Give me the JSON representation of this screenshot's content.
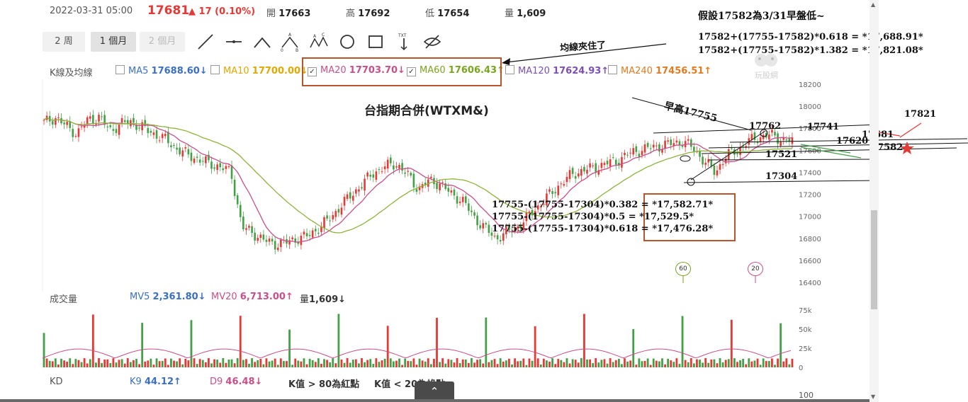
{
  "header": {
    "datetime": "2022-03-31 05:00",
    "price": "17681",
    "change": "▲ 17 (0.10%)",
    "open_label": "開",
    "open": "17663",
    "high_label": "高",
    "high": "17692",
    "low_label": "低",
    "low": "17654",
    "vol_label": "量",
    "vol": "1,609"
  },
  "periods": [
    "2 周",
    "1 個月",
    "2 個月"
  ],
  "active_period": "1 個月",
  "ma_bar": {
    "label": "K線及均線",
    "items": [
      {
        "name": "MA5",
        "value": "17688.60↓",
        "checked": false,
        "color": "#3a6fc4"
      },
      {
        "name": "MA10",
        "value": "17700.00↓",
        "checked": false,
        "color": "#e0a800"
      },
      {
        "name": "MA20",
        "value": "17703.70↓",
        "checked": true,
        "color": "#c94f8a"
      },
      {
        "name": "MA60",
        "value": "17606.43↑",
        "checked": true,
        "color": "#7aa51e"
      },
      {
        "name": "MA120",
        "value": "17624.93↑",
        "checked": false,
        "color": "#7c4fb3"
      },
      {
        "name": "MA240",
        "value": "17456.51↑",
        "checked": false,
        "color": "#e07b1f"
      }
    ]
  },
  "notes": {
    "top_right_title": "假設17582為3/31早盤低~",
    "formula1": "17582+(17755-17582)*0.618 = *17,688.91*",
    "formula2": "17582+(17755-17582)*1.382 = *17,821.08*",
    "ma_note": "均線夾住了",
    "early_high": "早高17755",
    "fib1": "17755-(17755-17304)*0.382 = *17,582.71*",
    "fib2": "17755-(17755-17304)*0.5 = *17,529.5*",
    "fib3": "17755-(17755-17304)*0.618 = *17,476.28*"
  },
  "levels": [
    "17821",
    "17762",
    "17741",
    "17681",
    "17620",
    "17582",
    "17521",
    "17304"
  ],
  "watermark": "玩股網",
  "volume_bar": {
    "label": "成交量",
    "mv5_label": "MV5",
    "mv5": "2,361.80↓",
    "mv20_label": "MV20",
    "mv20": "6,713.00↑",
    "vol_label": "量",
    "vol": "1,609↓"
  },
  "kd_bar": {
    "label": "KD",
    "k9_label": "K9",
    "k9": "44.12↑",
    "d9_label": "D9",
    "d9": "46.48↓",
    "note1": "K值 > 80為紅點",
    "note2": "K值 < 20為綠點"
  },
  "badges": [
    "60",
    "20"
  ],
  "colors": {
    "up": "#e53935",
    "down": "#43a047",
    "ma20": "#c94f8a",
    "ma60": "#8db33a",
    "highlight_box": "#b5562e"
  },
  "chart_data": {
    "type": "candlestick",
    "title": "台指期合併(WTXM&)",
    "y_ticks": [
      18200,
      18000,
      17800,
      17600,
      17400,
      17200,
      17000,
      16800,
      16600,
      16400
    ],
    "ylim": [
      16400,
      18200
    ],
    "closes": [
      17850,
      17900,
      17820,
      17750,
      17880,
      17900,
      17780,
      17840,
      17860,
      17800,
      17750,
      17700,
      17620,
      17560,
      17520,
      17480,
      17450,
      17400,
      16900,
      16850,
      16780,
      16750,
      16760,
      16800,
      16820,
      16900,
      16980,
      17100,
      17200,
      17300,
      17400,
      17450,
      17480,
      17380,
      17250,
      17320,
      17300,
      17200,
      17150,
      17000,
      16900,
      16800,
      16850,
      16900,
      17000,
      17100,
      17200,
      17300,
      17380,
      17420,
      17440,
      17480,
      17500,
      17560,
      17600,
      17620,
      17640,
      17660,
      17680,
      17620,
      17500,
      17400,
      17550,
      17600,
      17680,
      17720,
      17740,
      17700,
      17681
    ],
    "volume_ticks": [
      "75k",
      "50k",
      "25k",
      "0"
    ],
    "volume_ylim": [
      0,
      75000
    ],
    "kd_top_tick": "100"
  }
}
